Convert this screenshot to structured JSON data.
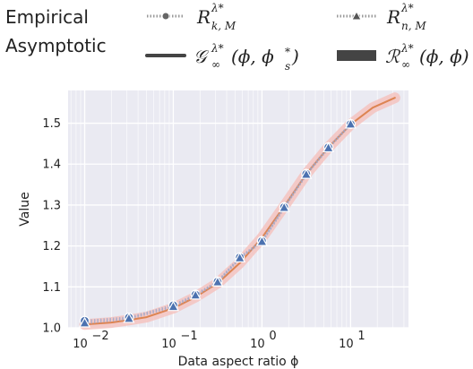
{
  "legend": {
    "group_empirical": "Empirical",
    "group_asymptotic": "Asymptotic",
    "empirical_r_km": {
      "base": "R",
      "sup": "λ*",
      "sub": "k, M"
    },
    "empirical_r_nm": {
      "base": "R",
      "sup": "λ*",
      "sub": "n, M"
    },
    "asymptotic_g": {
      "base": "𝒢",
      "sup": "λ*",
      "sub": "∞",
      "args": "(ϕ, ϕ",
      "args_sub": "s",
      "args_sup": "*",
      "args_end": ")"
    },
    "asymptotic_r": {
      "base": "ℛ",
      "sup": "λ*",
      "sub": "∞",
      "args": "(ϕ, ϕ)"
    }
  },
  "chart_data": {
    "type": "line",
    "xlabel": "Data aspect ratio ϕ",
    "ylabel": "Value",
    "xscale": "log",
    "xlim": [
      0.0065,
      45
    ],
    "ylim": [
      1.0,
      1.58
    ],
    "x_ticks": [
      0.01,
      0.1,
      1,
      10
    ],
    "x_tick_labels": [
      {
        "base": "10",
        "exp": "−2"
      },
      {
        "base": "10",
        "exp": "−1"
      },
      {
        "base": "10",
        "exp": "0"
      },
      {
        "base": "10",
        "exp": "1"
      }
    ],
    "y_ticks": [
      1.0,
      1.1,
      1.2,
      1.3,
      1.4,
      1.5
    ],
    "y_tick_labels": [
      "1.0",
      "1.1",
      "1.2",
      "1.3",
      "1.4",
      "1.5"
    ],
    "grid": true,
    "legend_position": "top",
    "colors": {
      "plot_bg": "#eaeaf2",
      "grid": "#ffffff",
      "orange": "#dd8452",
      "orange_band": "#f4c3c0",
      "blue": "#4c72b0",
      "marker_edge": "#ffffff"
    },
    "series": [
      {
        "name": "R^{λ*}_{k,M}",
        "kind": "empirical",
        "marker": "circle",
        "x": [
          0.01,
          0.0316,
          0.1,
          0.178,
          0.316,
          0.562,
          1.0,
          1.78,
          3.16,
          5.62,
          10.0
        ],
        "y": [
          1.017,
          1.025,
          1.055,
          1.081,
          1.113,
          1.172,
          1.212,
          1.295,
          1.376,
          1.441,
          1.498
        ]
      },
      {
        "name": "R^{λ*}_{n,M}",
        "kind": "empirical",
        "marker": "triangle",
        "x": [
          0.01,
          0.0316,
          0.1,
          0.178,
          0.316,
          0.562,
          1.0,
          1.78,
          3.16,
          5.62,
          10.0
        ],
        "y": [
          1.011,
          1.022,
          1.051,
          1.079,
          1.111,
          1.17,
          1.21,
          1.293,
          1.374,
          1.439,
          1.497
        ]
      },
      {
        "name": "𝒢^{λ*}_∞(ϕ, ϕ_s*)",
        "kind": "asymptotic",
        "style": "solid",
        "x": [
          0.01,
          0.02,
          0.0316,
          0.05,
          0.1,
          0.178,
          0.316,
          0.562,
          1.0,
          1.78,
          3.16,
          5.62,
          10.0,
          17.8,
          31.6
        ],
        "y": [
          1.008,
          1.013,
          1.019,
          1.026,
          1.048,
          1.075,
          1.109,
          1.158,
          1.22,
          1.297,
          1.376,
          1.441,
          1.497,
          1.538,
          1.562
        ]
      },
      {
        "name": "ℛ^{λ*}_∞(ϕ, ϕ)",
        "kind": "asymptotic",
        "style": "band",
        "x": [
          0.01,
          0.02,
          0.0316,
          0.05,
          0.1,
          0.178,
          0.316,
          0.562,
          1.0,
          1.78,
          3.16,
          5.62,
          10.0,
          17.8,
          31.6
        ],
        "y": [
          1.008,
          1.013,
          1.019,
          1.026,
          1.048,
          1.075,
          1.109,
          1.158,
          1.22,
          1.297,
          1.376,
          1.441,
          1.497,
          1.538,
          1.562
        ]
      }
    ]
  }
}
